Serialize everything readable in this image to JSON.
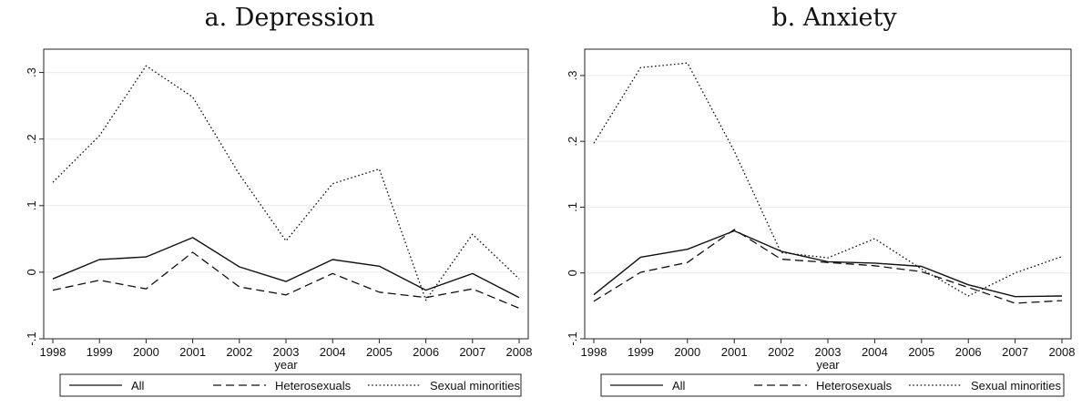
{
  "chart_data": [
    {
      "type": "line",
      "title": "a. Depression",
      "xlabel": "year",
      "ylabel": "",
      "x": [
        1998,
        1999,
        2000,
        2001,
        2002,
        2003,
        2004,
        2005,
        2006,
        2007,
        2008
      ],
      "ylim": [
        -0.1,
        0.335
      ],
      "yticks": [
        -0.1,
        0,
        0.1,
        0.2,
        0.3
      ],
      "ytick_labels": [
        "-.1",
        "0",
        ".1",
        ".2",
        ".3"
      ],
      "grid": true,
      "legend": "bottom",
      "series": [
        {
          "name": "All",
          "style": "solid",
          "values": [
            -0.01,
            0.019,
            0.023,
            0.052,
            0.008,
            -0.014,
            0.019,
            0.009,
            -0.027,
            -0.002,
            -0.038
          ]
        },
        {
          "name": "Heterosexuals",
          "style": "dashed",
          "values": [
            -0.027,
            -0.012,
            -0.025,
            0.03,
            -0.022,
            -0.034,
            -0.002,
            -0.03,
            -0.038,
            -0.025,
            -0.054
          ]
        },
        {
          "name": "Sexual minorities",
          "style": "dotted",
          "values": [
            0.135,
            0.205,
            0.31,
            0.263,
            0.147,
            0.047,
            0.133,
            0.155,
            -0.042,
            0.057,
            -0.01
          ]
        }
      ]
    },
    {
      "type": "line",
      "title": "b. Anxiety",
      "xlabel": "year",
      "ylabel": "",
      "x": [
        1998,
        1999,
        2000,
        2001,
        2002,
        2003,
        2004,
        2005,
        2006,
        2007,
        2008
      ],
      "ylim": [
        -0.1,
        0.34
      ],
      "yticks": [
        -0.1,
        0,
        0.1,
        0.2,
        0.3
      ],
      "ytick_labels": [
        "-.1",
        "0",
        ".1",
        ".2",
        ".3"
      ],
      "grid": true,
      "legend": "bottom",
      "series": [
        {
          "name": "All",
          "style": "solid",
          "values": [
            -0.033,
            0.024,
            0.036,
            0.064,
            0.033,
            0.017,
            0.015,
            0.01,
            -0.018,
            -0.036,
            -0.035
          ]
        },
        {
          "name": "Heterosexuals",
          "style": "dashed",
          "values": [
            -0.043,
            0.001,
            0.016,
            0.066,
            0.021,
            0.016,
            0.011,
            0.002,
            -0.022,
            -0.046,
            -0.042
          ]
        },
        {
          "name": "Sexual minorities",
          "style": "dotted",
          "values": [
            0.197,
            0.312,
            0.319,
            0.185,
            0.031,
            0.023,
            0.052,
            0.006,
            -0.035,
            0.0,
            0.025
          ]
        }
      ]
    }
  ]
}
